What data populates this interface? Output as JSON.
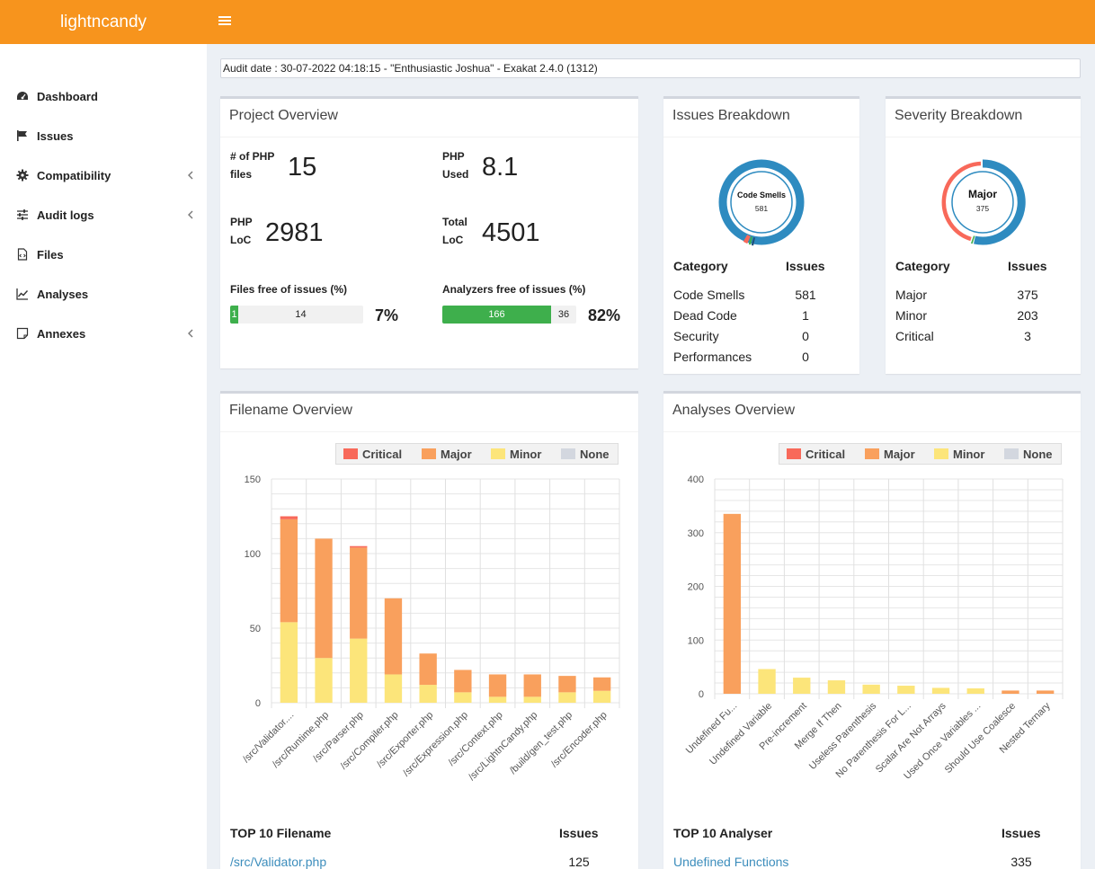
{
  "app": {
    "logo": "lightncandy"
  },
  "sidebar": {
    "items": [
      {
        "label": "Dashboard",
        "icon": "dashboard-icon",
        "chevron": false
      },
      {
        "label": "Issues",
        "icon": "flag-icon",
        "chevron": false
      },
      {
        "label": "Compatibility",
        "icon": "cog-icon",
        "chevron": true
      },
      {
        "label": "Audit logs",
        "icon": "sliders-icon",
        "chevron": true
      },
      {
        "label": "Files",
        "icon": "file-code-icon",
        "chevron": false
      },
      {
        "label": "Analyses",
        "icon": "line-chart-icon",
        "chevron": false
      },
      {
        "label": "Annexes",
        "icon": "sticky-note-icon",
        "chevron": true
      }
    ]
  },
  "audit": {
    "text": "Audit date : 30-07-2022 04:18:15 - \"Enthusiastic Joshua\" - Exakat 2.4.0 (1312)"
  },
  "project_overview": {
    "title": "Project Overview",
    "php_files_label_1": "# of PHP",
    "php_files_label_2": "files",
    "php_files_value": "15",
    "php_used_label_1": "PHP",
    "php_used_label_2": "Used",
    "php_used_value": "8.1",
    "php_loc_label_1": "PHP",
    "php_loc_label_2": "LoC",
    "php_loc_value": "2981",
    "total_loc_label_1": "Total",
    "total_loc_label_2": "LoC",
    "total_loc_value": "4501",
    "files_free_label": "Files free of issues (%)",
    "files_free_ok": "1",
    "files_free_bad": "14",
    "files_free_pct": "7%",
    "files_free_fraction": 0.07,
    "analyzers_free_label": "Analyzers free of issues (%)",
    "analyzers_free_ok": "166",
    "analyzers_free_bad": "36",
    "analyzers_free_pct": "82%",
    "analyzers_free_fraction": 0.82
  },
  "issues_breakdown": {
    "title": "Issues Breakdown",
    "donut_label": "Code Smells",
    "donut_value": "581",
    "col_category": "Category",
    "col_issues": "Issues",
    "rows": [
      {
        "category": "Code Smells",
        "issues": "581"
      },
      {
        "category": "Dead Code",
        "issues": "1"
      },
      {
        "category": "Security",
        "issues": "0"
      },
      {
        "category": "Performances",
        "issues": "0"
      }
    ]
  },
  "severity_breakdown": {
    "title": "Severity Breakdown",
    "donut_label": "Major",
    "donut_value": "375",
    "col_category": "Category",
    "col_issues": "Issues",
    "rows": [
      {
        "category": "Major",
        "issues": "375"
      },
      {
        "category": "Minor",
        "issues": "203"
      },
      {
        "category": "Critical",
        "issues": "3"
      }
    ]
  },
  "legend": [
    {
      "label": "Critical",
      "color": "#f8695a"
    },
    {
      "label": "Major",
      "color": "#f9a05d"
    },
    {
      "label": "Minor",
      "color": "#fce57a"
    },
    {
      "label": "None",
      "color": "#d3d7df"
    }
  ],
  "filename_overview": {
    "title": "Filename Overview",
    "top_label": "TOP 10 Filename",
    "top_issues_label": "Issues",
    "top_first_name": "/src/Validator.php",
    "top_first_value": "125"
  },
  "analyses_overview": {
    "title": "Analyses Overview",
    "top_label": "TOP 10 Analyser",
    "top_issues_label": "Issues",
    "top_first_name": "Undefined Functions",
    "top_first_value": "335"
  },
  "chart_data": [
    {
      "type": "bar",
      "stacked": true,
      "categories": [
        "/src/Validator....",
        "/src/Runtime.php",
        "/src/Parser.php",
        "/src/Compiler.php",
        "/src/Exporter.php",
        "/src/Expression.php",
        "/src/Context.php",
        "/src/LightnCandy.php",
        "/build/gen_test.php",
        "/src/Encoder.php"
      ],
      "series": [
        {
          "name": "Critical",
          "values": [
            2,
            0,
            1,
            0,
            0,
            0,
            0,
            0,
            0,
            0
          ]
        },
        {
          "name": "Major",
          "values": [
            69,
            80,
            61,
            51,
            21,
            15,
            15,
            15,
            11,
            9
          ]
        },
        {
          "name": "Minor",
          "values": [
            54,
            30,
            43,
            19,
            12,
            7,
            4,
            4,
            7,
            8
          ]
        },
        {
          "name": "None",
          "values": [
            0,
            0,
            0,
            0,
            0,
            0,
            0,
            0,
            0,
            0
          ]
        }
      ],
      "yticks": [
        0,
        50,
        100,
        150
      ],
      "ylim": [
        0,
        150
      ],
      "legend": "top-right"
    },
    {
      "type": "bar",
      "stacked": true,
      "categories": [
        "Undefined Fu...",
        "Undefined Variable",
        "Pre-increment",
        "Merge If Then",
        "Useless Parenthesis",
        "No Parenthesis For L...",
        "Scalar Are Not Arrays",
        "Used Once Variables ...",
        "Should Use Coalesce",
        "Nested Ternary"
      ],
      "series": [
        {
          "name": "Critical",
          "values": [
            0,
            0,
            0,
            0,
            0,
            0,
            0,
            0,
            0,
            0
          ]
        },
        {
          "name": "Major",
          "values": [
            335,
            0,
            0,
            0,
            0,
            0,
            0,
            0,
            6,
            6
          ]
        },
        {
          "name": "Minor",
          "values": [
            0,
            46,
            30,
            25,
            17,
            15,
            11,
            10,
            0,
            0
          ]
        },
        {
          "name": "None",
          "values": [
            0,
            0,
            0,
            0,
            0,
            0,
            0,
            0,
            0,
            0
          ]
        }
      ],
      "yticks": [
        0,
        100,
        200,
        300,
        400
      ],
      "ylim": [
        0,
        400
      ],
      "legend": "top-right"
    }
  ]
}
